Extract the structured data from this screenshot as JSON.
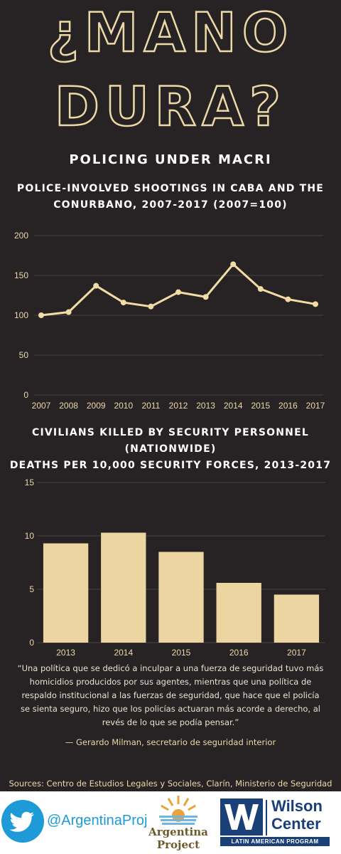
{
  "header": {
    "title_line1": "¿MANO",
    "title_line2": "DURA?",
    "subtitle": "POLICING UNDER MACRI"
  },
  "colors": {
    "background": "#272223",
    "accent": "#ecd9a8",
    "line": "#f0dca4",
    "bar": "#ecd5a0",
    "twitter": "#1e9bd7",
    "wilson_blue": "#1b3f77"
  },
  "chart_data": [
    {
      "type": "line",
      "title": "POLICE-INVOLVED SHOOTINGS IN CABA AND THE CONURBANO, 2007-2017 (2007=100)",
      "x": [
        "2007",
        "2008",
        "2009",
        "2010",
        "2011",
        "2012",
        "2013",
        "2014",
        "2015",
        "2016",
        "2017"
      ],
      "series": [
        {
          "values": [
            100,
            104,
            137,
            116,
            111,
            129,
            123,
            164,
            133,
            120,
            114
          ]
        }
      ],
      "ylim": [
        0,
        200
      ],
      "yticks": [
        0,
        50,
        100,
        150,
        200
      ],
      "grid": true
    },
    {
      "type": "bar",
      "title": "CIVILIANS KILLED BY SECURITY PERSONNEL (NATIONWIDE) DEATHS PER 10,000 SECURITY FORCES, 2013-2017",
      "title_lines": [
        "CIVILIANS KILLED BY SECURITY PERSONNEL",
        "(NATIONWIDE)",
        "DEATHS PER 10,000 SECURITY FORCES, 2013-2017"
      ],
      "categories": [
        "2013",
        "2014",
        "2015",
        "2016",
        "2017"
      ],
      "values": [
        9.3,
        10.3,
        8.5,
        5.6,
        4.5
      ],
      "ylim": [
        0,
        15
      ],
      "yticks": [
        0,
        5,
        10,
        15
      ],
      "grid": true
    }
  ],
  "quote": {
    "text": "“Una política que se dedicó a inculpar a una fuerza de seguridad tuvo más homicidios producidos por sus agentes, mientras que una política de respaldo institucional a las fuerzas de seguridad, que hace que el policía se sienta seguro, hizo que los policías actuaran más acorde a derecho, al revés de lo que se podía pensar.”",
    "attribution": "— Gerardo Milman, secretario de seguridad interior"
  },
  "sources": "Sources: Centro de Estudios Legales y Sociales, Clarín, Ministerio de Seguridad",
  "footer": {
    "twitter_handle": "@ArgentinaProj",
    "twitter_icon": "twitter-bird-icon",
    "argentina_project_line1": "Argentina",
    "argentina_project_line2": "Project",
    "wilson_line1": "Wilson",
    "wilson_line2": "Center",
    "wilson_program": "LATIN AMERICAN PROGRAM"
  }
}
